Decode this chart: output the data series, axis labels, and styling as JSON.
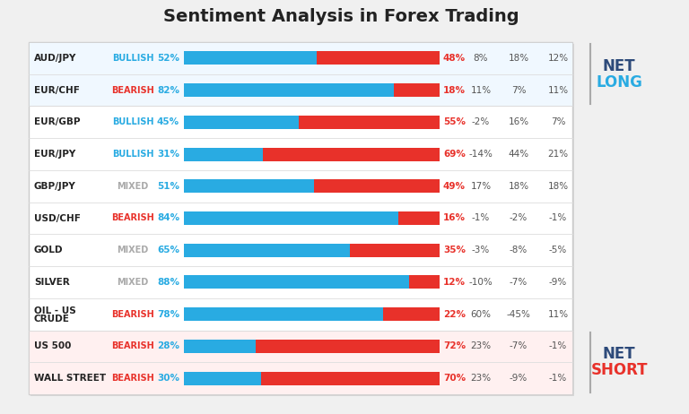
{
  "title": "Sentiment Analysis in Forex Trading",
  "rows": [
    {
      "label": "AUD/JPY",
      "label2": "",
      "sentiment": "BULLISH",
      "sent_color": "#29abe2",
      "blue_pct": 52,
      "red_pct": 48,
      "col1": "8%",
      "col2": "18%",
      "col3": "12%",
      "group": "net_long"
    },
    {
      "label": "EUR/CHF",
      "label2": "",
      "sentiment": "BEARISH",
      "sent_color": "#e8312a",
      "blue_pct": 82,
      "red_pct": 18,
      "col1": "11%",
      "col2": "7%",
      "col3": "11%",
      "group": "net_long"
    },
    {
      "label": "EUR/GBP",
      "label2": "",
      "sentiment": "BULLISH",
      "sent_color": "#29abe2",
      "blue_pct": 45,
      "red_pct": 55,
      "col1": "-2%",
      "col2": "16%",
      "col3": "7%",
      "group": "none"
    },
    {
      "label": "EUR/JPY",
      "label2": "",
      "sentiment": "BULLISH",
      "sent_color": "#29abe2",
      "blue_pct": 31,
      "red_pct": 69,
      "col1": "-14%",
      "col2": "44%",
      "col3": "21%",
      "group": "none"
    },
    {
      "label": "GBP/JPY",
      "label2": "",
      "sentiment": "MIXED",
      "sent_color": "#aaaaaa",
      "blue_pct": 51,
      "red_pct": 49,
      "col1": "17%",
      "col2": "18%",
      "col3": "18%",
      "group": "none"
    },
    {
      "label": "USD/CHF",
      "label2": "",
      "sentiment": "BEARISH",
      "sent_color": "#e8312a",
      "blue_pct": 84,
      "red_pct": 16,
      "col1": "-1%",
      "col2": "-2%",
      "col3": "-1%",
      "group": "none"
    },
    {
      "label": "GOLD",
      "label2": "",
      "sentiment": "MIXED",
      "sent_color": "#aaaaaa",
      "blue_pct": 65,
      "red_pct": 35,
      "col1": "-3%",
      "col2": "-8%",
      "col3": "-5%",
      "group": "none"
    },
    {
      "label": "SILVER",
      "label2": "",
      "sentiment": "MIXED",
      "sent_color": "#aaaaaa",
      "blue_pct": 88,
      "red_pct": 12,
      "col1": "-10%",
      "col2": "-7%",
      "col3": "-9%",
      "group": "none"
    },
    {
      "label": "OIL - US",
      "label2": "CRUDE",
      "sentiment": "BEARISH",
      "sent_color": "#e8312a",
      "blue_pct": 78,
      "red_pct": 22,
      "col1": "60%",
      "col2": "-45%",
      "col3": "11%",
      "group": "none"
    },
    {
      "label": "US 500",
      "label2": "",
      "sentiment": "BEARISH",
      "sent_color": "#e8312a",
      "blue_pct": 28,
      "red_pct": 72,
      "col1": "23%",
      "col2": "-7%",
      "col3": "-1%",
      "group": "net_short"
    },
    {
      "label": "WALL STREET",
      "label2": "",
      "sentiment": "BEARISH",
      "sent_color": "#e8312a",
      "blue_pct": 30,
      "red_pct": 70,
      "col1": "23%",
      "col2": "-9%",
      "col3": "-1%",
      "group": "net_short"
    }
  ],
  "bar_blue": "#29abe2",
  "bar_red": "#e8312a",
  "bg_color": "#f0f0f0",
  "table_bg": "#ffffff",
  "net_long_color_net": "#2d4a7a",
  "net_long_color_long": "#29abe2",
  "net_short_color_net": "#2d4a7a",
  "net_short_color_short": "#e8312a",
  "separator_color": "#dddddd",
  "label_color": "#222222",
  "col_color": "#555555"
}
